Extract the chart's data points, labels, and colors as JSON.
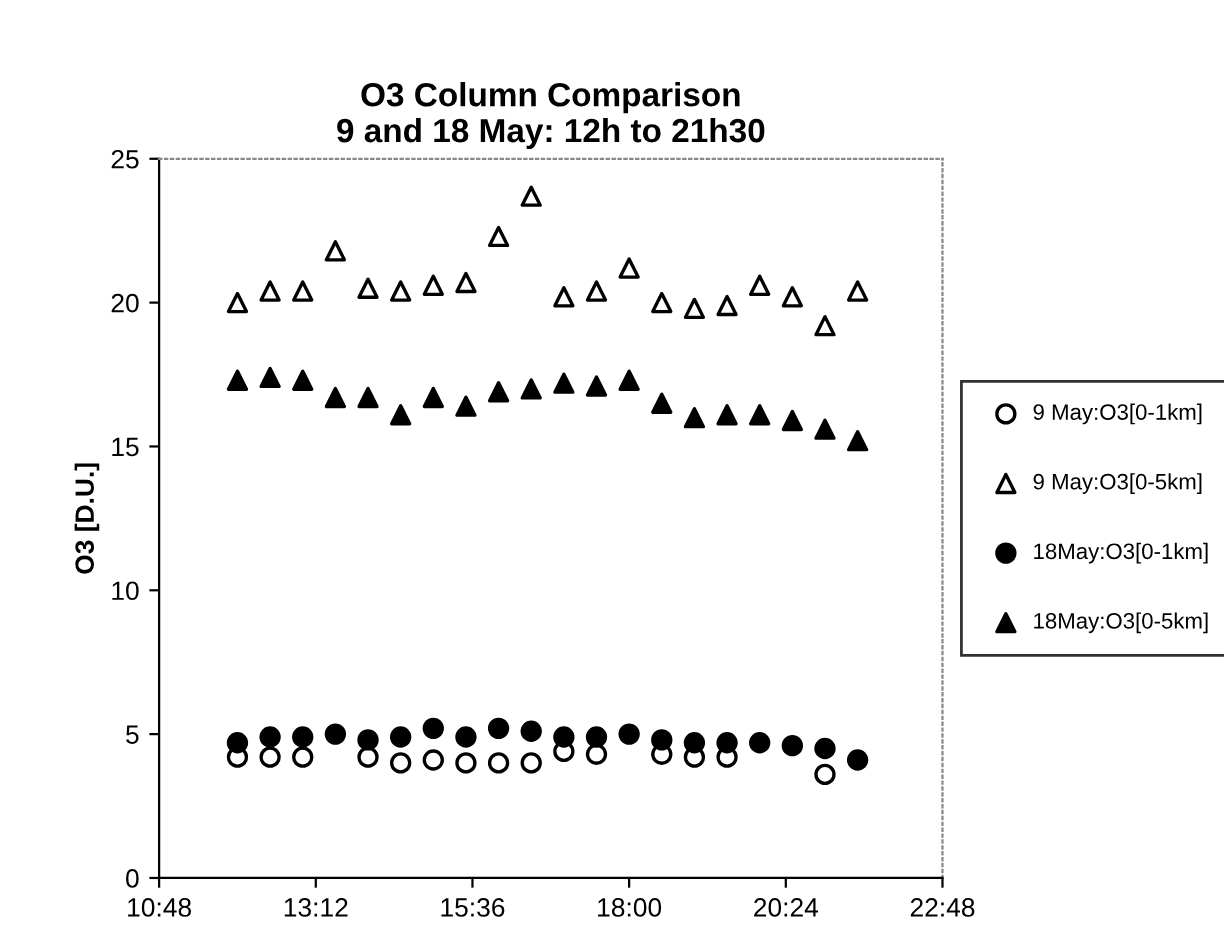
{
  "chart_data": {
    "type": "scatter",
    "title": "O3 Column Comparison\n9 and 18 May: 12h to 21h30",
    "ylabel": "O3 [D.U.]",
    "xlim": [
      10.8,
      22.8
    ],
    "xticks": [
      {
        "value": 10.8,
        "label": "10:48"
      },
      {
        "value": 13.2,
        "label": "13:12"
      },
      {
        "value": 15.6,
        "label": "15:36"
      },
      {
        "value": 18.0,
        "label": "18:00"
      },
      {
        "value": 20.4,
        "label": "20:24"
      },
      {
        "value": 22.8,
        "label": "22:48"
      }
    ],
    "ylim": [
      0,
      25
    ],
    "yticks": [
      0,
      5,
      10,
      15,
      20,
      25
    ],
    "grid": false,
    "legend": "right",
    "series": [
      {
        "name": "9 May:O3[0-1km]",
        "color": "#ffffff",
        "marker": "circle",
        "x": [
          12.0,
          12.5,
          13.0,
          14.0,
          14.5,
          15.0,
          15.5,
          16.0,
          16.5,
          17.0,
          17.5,
          18.0,
          18.5,
          19.0,
          19.5,
          21.0
        ],
        "values": [
          4.2,
          4.2,
          4.2,
          4.2,
          4.0,
          4.1,
          4.0,
          4.0,
          4.0,
          4.4,
          4.3,
          null,
          4.3,
          4.2,
          4.2,
          3.6
        ]
      },
      {
        "name": "9 May:O3[0-5km]",
        "color": "#ffffff",
        "marker": "triangle",
        "x": [
          12.0,
          12.5,
          13.0,
          13.5,
          14.0,
          14.5,
          15.0,
          15.5,
          16.0,
          16.5,
          17.0,
          17.5,
          18.0,
          18.5,
          19.0,
          19.5,
          20.0,
          20.5,
          21.0,
          21.5
        ],
        "values": [
          20.0,
          20.4,
          20.4,
          21.8,
          20.5,
          20.4,
          20.6,
          20.7,
          22.3,
          23.7,
          20.2,
          20.4,
          21.2,
          20.0,
          19.8,
          19.9,
          20.6,
          20.2,
          19.2,
          20.4
        ]
      },
      {
        "name": "18May:O3[0-1km]",
        "color": "#000000",
        "marker": "circle",
        "x": [
          12.0,
          12.5,
          13.0,
          13.5,
          14.0,
          14.5,
          15.0,
          15.5,
          16.0,
          16.5,
          17.0,
          17.5,
          18.0,
          18.5,
          19.0,
          19.5,
          20.0,
          20.5,
          21.0,
          21.5
        ],
        "values": [
          4.7,
          4.9,
          4.9,
          5.0,
          4.8,
          4.9,
          5.2,
          4.9,
          5.2,
          5.1,
          4.9,
          4.9,
          5.0,
          4.8,
          4.7,
          4.7,
          4.7,
          4.6,
          4.5,
          4.1
        ]
      },
      {
        "name": "18May:O3[0-5km]",
        "color": "#000000",
        "marker": "triangle",
        "x": [
          12.0,
          12.5,
          13.0,
          13.5,
          14.0,
          14.5,
          15.0,
          15.5,
          16.0,
          16.5,
          17.0,
          17.5,
          18.0,
          18.5,
          19.0,
          19.5,
          20.0,
          20.5,
          21.0,
          21.5
        ],
        "values": [
          17.3,
          17.4,
          17.3,
          16.7,
          16.7,
          16.1,
          16.7,
          16.4,
          16.9,
          17.0,
          17.2,
          17.1,
          17.3,
          16.5,
          16.0,
          16.1,
          16.1,
          15.9,
          15.6,
          15.2
        ]
      }
    ]
  }
}
